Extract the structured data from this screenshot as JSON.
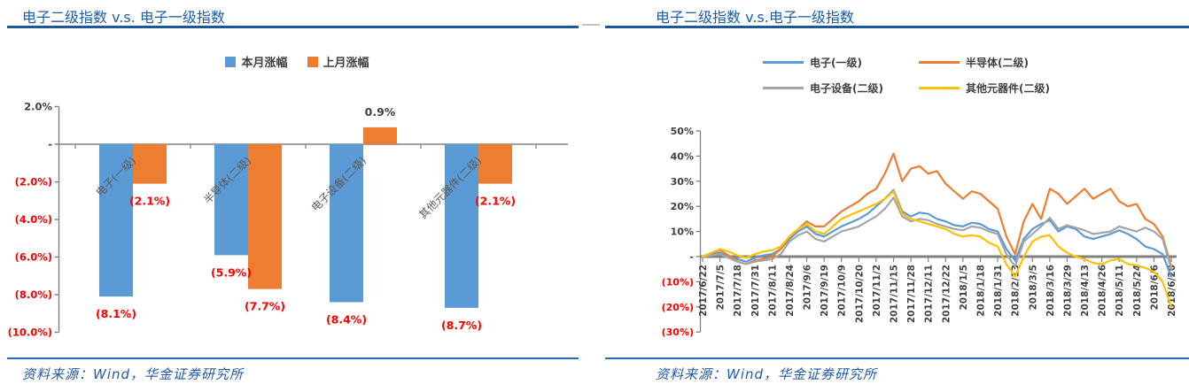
{
  "panels": [
    {
      "title": "电子二级指数 v.s. 电子一级指数",
      "source": "资料来源：Wind，华金证券研究所"
    },
    {
      "title": "电子二级指数 v.s.电子一级指数",
      "source": "资料来源：Wind，华金证券研究所"
    }
  ],
  "colors": {
    "title": "#1A5EA8",
    "title_rule": "#1E5799",
    "footer_rule": "#2469B4",
    "source_text": "#2159A4",
    "axis_gray": "#808080",
    "tick_text": "#404040",
    "negative_red": "#FF0000",
    "category_text": "#595959",
    "series_blue": "#5B9BD5",
    "series_orange": "#ED7D31",
    "series_gray": "#A5A5A5",
    "series_yellow": "#FFC000"
  },
  "chart_data": [
    {
      "type": "bar",
      "title": "电子二级指数 v.s. 电子一级指数",
      "categories": [
        "电子(一级)",
        "半导体(二级)",
        "电子设备(二级)",
        "其他元器件(二级)"
      ],
      "series": [
        {
          "name": "本月涨幅",
          "color": "#5B9BD5",
          "values": [
            -8.1,
            -5.9,
            -8.4,
            -8.7
          ]
        },
        {
          "name": "上月涨幅",
          "color": "#ED7D31",
          "values": [
            -2.1,
            -7.7,
            0.9,
            -2.1
          ]
        }
      ],
      "data_labels": [
        "(8.1%)",
        "(2.1%)",
        "(5.9%)",
        "(7.7%)",
        "(8.4%)",
        "0.9%",
        "(8.7%)",
        "(2.1%)"
      ],
      "ylim": [
        -10,
        2
      ],
      "yticks": {
        "values": [
          2,
          0,
          -2,
          -4,
          -6,
          -8,
          -10
        ],
        "labels": [
          "2.0%",
          "-",
          "(2.0%)",
          "(4.0%)",
          "(6.0%)",
          "(8.0%)",
          "(10.0%)"
        ]
      },
      "legend_position": "top",
      "grid": false
    },
    {
      "type": "line",
      "title": "电子二级指数 v.s.电子一级指数",
      "x_labels": [
        "2017/6/22",
        "2017/7/5",
        "2017/7/18",
        "2017/7/31",
        "2017/8/11",
        "2017/8/24",
        "2017/9/6",
        "2017/9/19",
        "2017/10/9",
        "2017/10/20",
        "2017/11/2",
        "2017/11/15",
        "2017/11/28",
        "2017/12/11",
        "2017/12/22",
        "2018/1/5",
        "2018/1/18",
        "2018/1/31",
        "2018/2/13",
        "2018/3/5",
        "2018/3/16",
        "2018/3/29",
        "2018/4/13",
        "2018/4/26",
        "2018/5/11",
        "2018/5/24",
        "2018/6/6",
        "2018/6/20"
      ],
      "ylim": [
        -30,
        50
      ],
      "yticks": {
        "values": [
          50,
          40,
          30,
          20,
          10,
          0,
          -10,
          -20,
          -30
        ],
        "labels": [
          "50%",
          "40%",
          "30%",
          "20%",
          "10%",
          "-",
          "(10%)",
          "(20%)",
          "(30%)"
        ]
      },
      "series": [
        {
          "name": "电子(一级)",
          "color": "#5B9BD5",
          "values": [
            0,
            1,
            1.5,
            0,
            -1,
            -2,
            -0.5,
            0.5,
            1,
            3,
            7,
            10,
            12,
            9,
            8,
            10,
            12,
            13.5,
            15,
            17,
            20,
            23,
            26.5,
            18,
            16,
            17.5,
            17,
            15,
            14,
            12.5,
            12,
            13.5,
            13,
            11,
            10,
            3,
            -1.5,
            7,
            11,
            13,
            14.5,
            10,
            12,
            11,
            8,
            7,
            8,
            9,
            10.5,
            9,
            7,
            4,
            3,
            1,
            -8
          ]
        },
        {
          "name": "半导体(二级)",
          "color": "#ED7D31",
          "values": [
            0,
            1.5,
            2.5,
            0.5,
            -2,
            -3,
            -1.5,
            -1,
            0,
            3,
            8,
            11,
            14,
            12,
            12,
            15,
            18,
            20,
            22,
            25,
            27,
            33,
            41,
            30,
            35,
            36,
            33,
            34,
            29,
            26,
            23,
            26,
            25,
            22,
            19,
            8,
            1,
            14,
            21,
            15,
            27,
            25,
            21,
            24,
            27,
            23,
            25,
            27,
            22,
            20,
            21,
            15,
            13,
            8,
            -4
          ]
        },
        {
          "name": "电子设备(二级)",
          "color": "#A5A5A5",
          "values": [
            0,
            0.5,
            1,
            -0.5,
            -2,
            -3,
            -2,
            -1.5,
            -1,
            1,
            6,
            8.5,
            10,
            7,
            6,
            8,
            10,
            11,
            12,
            14,
            16,
            19,
            23.5,
            16,
            14,
            15,
            14.5,
            13,
            12,
            11,
            10.5,
            12,
            11.5,
            10,
            9,
            1,
            -4,
            6,
            9,
            12,
            15.5,
            11,
            12.5,
            11.5,
            10.5,
            9,
            9.5,
            10,
            12,
            11,
            10,
            11.5,
            10,
            7,
            -5
          ]
        },
        {
          "name": "其他元器件(二级)",
          "color": "#FFC000",
          "values": [
            0,
            1.5,
            3,
            2,
            0.5,
            -0.5,
            1,
            2,
            2.5,
            4,
            8,
            11,
            13,
            10,
            9,
            12,
            15,
            16.5,
            18,
            19.5,
            21,
            23,
            26,
            17,
            15,
            14,
            13,
            12,
            11,
            9,
            8,
            8.5,
            8,
            5.5,
            4,
            -3,
            -8,
            0,
            6,
            8,
            8.5,
            4,
            1.5,
            0,
            -1,
            -2.5,
            -3,
            -1.5,
            -1,
            -3,
            -3.5,
            -4.5,
            -6,
            -10,
            -20
          ]
        }
      ],
      "legend_position": "top",
      "grid": false
    }
  ]
}
